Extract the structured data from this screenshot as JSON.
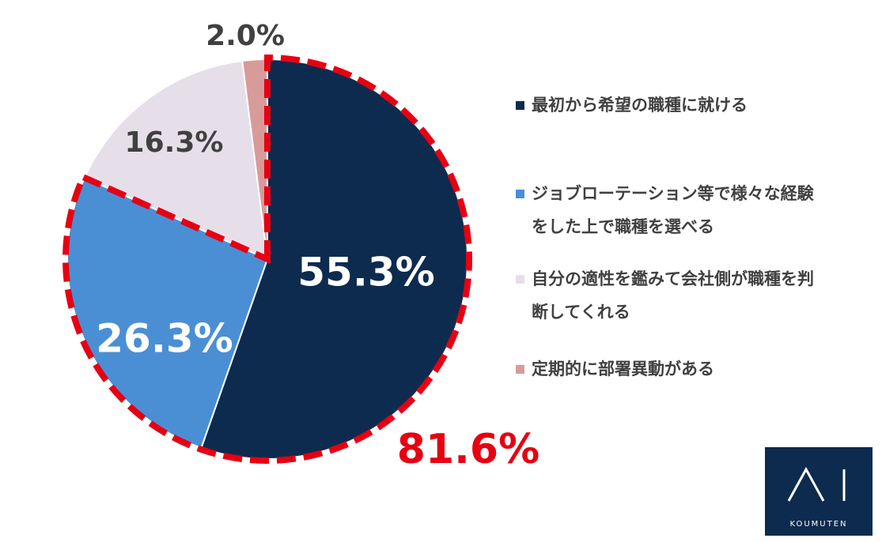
{
  "chart_data": {
    "type": "pie",
    "categories": [
      "最初から希望の職種に就ける",
      "ジョブローテーション等で様々な経験をした上で職種を選べる",
      "自分の適性を鑑みて会社側が職種を判断してくれる",
      "定期的に部署異動がある"
    ],
    "values": [
      55.3,
      26.3,
      16.3,
      2.0
    ],
    "value_labels": [
      "55.3%",
      "26.3%",
      "16.3%",
      "2.0%"
    ],
    "colors": [
      "#0d2b4e",
      "#4a8fd4",
      "#e6dfea",
      "#d99a9a"
    ],
    "annotation": "81.6%",
    "highlight_color": "#e60012"
  },
  "logo": {
    "text": "KOUMUTEN"
  }
}
